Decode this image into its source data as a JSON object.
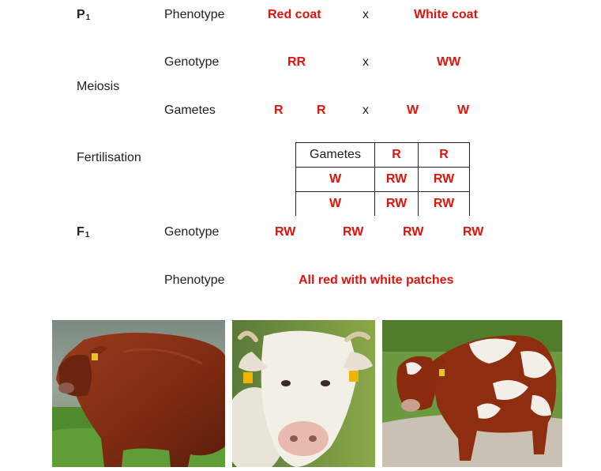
{
  "p1": {
    "generation": "P",
    "subscript": "1"
  },
  "phenotype_label": "Phenotype",
  "genotype_label": "Genotype",
  "gametes_label": "Gametes",
  "meiosis_label": "Meiosis",
  "fertilisation_label": "Fertilisation",
  "cross_symbol": "x",
  "parents": {
    "phenotype_1": "Red coat",
    "phenotype_2": "White coat",
    "genotype_1": "RR",
    "genotype_2": "WW",
    "gametes": [
      "R",
      "R",
      "W",
      "W"
    ]
  },
  "punnett": {
    "header": [
      "Gametes",
      "R",
      "R"
    ],
    "rows": [
      [
        "W",
        "RW",
        "RW"
      ],
      [
        "W",
        "RW",
        "RW"
      ]
    ]
  },
  "f1": {
    "generation": "F",
    "subscript": "1",
    "genotypes": [
      "RW",
      "RW",
      "RW",
      "RW"
    ],
    "phenotype": "All red with white patches"
  },
  "colors": {
    "allele_red": "#e3120b",
    "text": "#222222"
  },
  "photos": [
    "red-bull-photo",
    "white-cow-photo",
    "red-white-patched-cow-photo"
  ]
}
